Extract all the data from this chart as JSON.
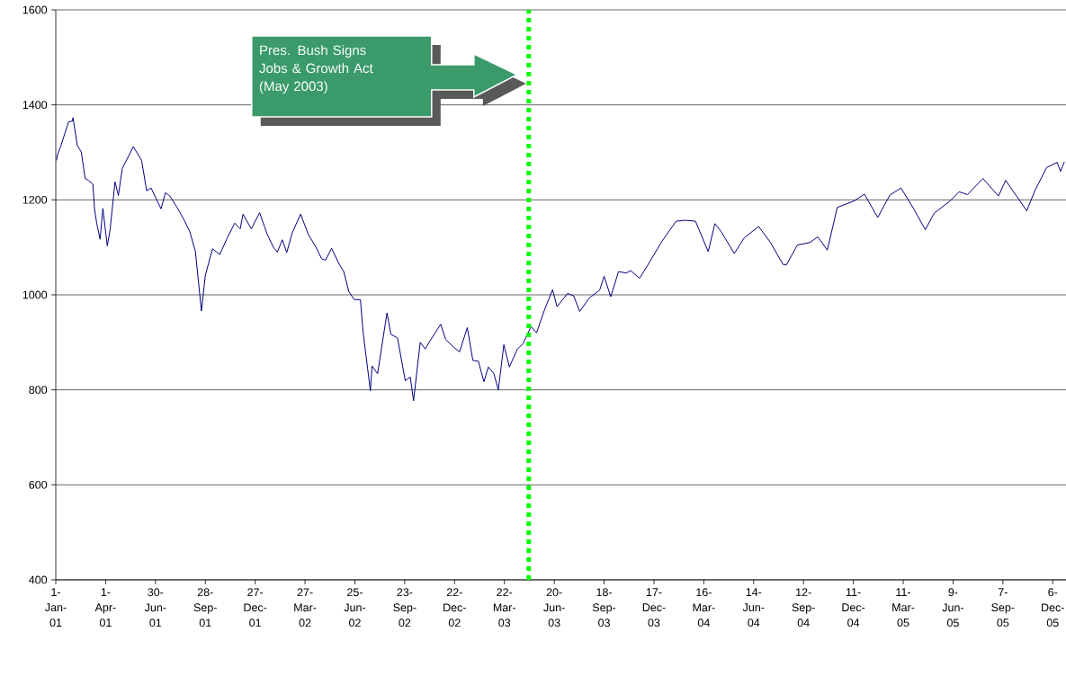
{
  "chart_data": {
    "type": "line",
    "x": [
      "2001-01-02",
      "2001-01-05",
      "2001-01-10",
      "2001-01-24",
      "2001-01-31",
      "2001-02-01",
      "2001-02-09",
      "2001-02-16",
      "2001-02-23",
      "2001-03-01",
      "2001-03-09",
      "2001-03-12",
      "2001-03-16",
      "2001-03-22",
      "2001-03-27",
      "2001-04-04",
      "2001-04-09",
      "2001-04-18",
      "2001-04-24",
      "2001-05-01",
      "2001-05-21",
      "2001-06-05",
      "2001-06-14",
      "2001-06-22",
      "2001-07-10",
      "2001-07-18",
      "2001-07-26",
      "2001-08-08",
      "2001-08-21",
      "2001-08-31",
      "2001-09-10",
      "2001-09-21",
      "2001-09-28",
      "2001-10-11",
      "2001-10-24",
      "2001-11-06",
      "2001-11-20",
      "2001-11-30",
      "2001-12-05",
      "2001-12-20",
      "2002-01-04",
      "2002-01-18",
      "2002-01-29",
      "2002-02-05",
      "2002-02-14",
      "2002-02-22",
      "2002-03-04",
      "2002-03-19",
      "2002-04-02",
      "2002-04-15",
      "2002-04-26",
      "2002-05-03",
      "2002-05-14",
      "2002-05-28",
      "2002-06-05",
      "2002-06-14",
      "2002-06-24",
      "2002-07-05",
      "2002-07-10",
      "2002-07-23",
      "2002-07-26",
      "2002-08-05",
      "2002-08-22",
      "2002-08-29",
      "2002-09-10",
      "2002-09-24",
      "2002-10-03",
      "2002-10-09",
      "2002-10-21",
      "2002-10-30",
      "2002-11-07",
      "2002-11-27",
      "2002-12-06",
      "2002-12-20",
      "2002-12-31",
      "2003-01-14",
      "2003-01-24",
      "2003-02-03",
      "2003-02-13",
      "2003-02-21",
      "2003-03-03",
      "2003-03-11",
      "2003-03-21",
      "2003-03-31",
      "2003-04-14",
      "2003-04-25",
      "2003-05-09",
      "2003-05-19",
      "2003-06-02",
      "2003-06-17",
      "2003-06-25",
      "2003-07-14",
      "2003-07-25",
      "2003-08-05",
      "2003-08-22",
      "2003-09-10",
      "2003-09-18",
      "2003-09-30",
      "2003-10-14",
      "2003-10-28",
      "2003-11-05",
      "2003-11-21",
      "2003-12-05",
      "2003-12-31",
      "2004-01-26",
      "2004-02-11",
      "2004-03-01",
      "2004-03-24",
      "2004-04-05",
      "2004-04-16",
      "2004-05-10",
      "2004-05-28",
      "2004-06-23",
      "2004-07-14",
      "2004-08-06",
      "2004-08-12",
      "2004-09-01",
      "2004-09-23",
      "2004-10-08",
      "2004-10-25",
      "2004-11-12",
      "2004-12-13",
      "2004-12-31",
      "2005-01-24",
      "2005-02-15",
      "2005-03-07",
      "2005-03-30",
      "2005-04-20",
      "2005-05-06",
      "2005-06-03",
      "2005-06-20",
      "2005-07-05",
      "2005-08-02",
      "2005-08-30",
      "2005-09-12",
      "2005-10-20",
      "2005-11-04",
      "2005-11-25",
      "2005-12-14",
      "2005-12-20",
      "2005-12-27"
    ],
    "values": [
      1283,
      1298,
      1313,
      1364,
      1366,
      1373,
      1314,
      1301,
      1245,
      1241,
      1233,
      1180,
      1150,
      1117,
      1182,
      1103,
      1137,
      1238,
      1209,
      1266,
      1312,
      1283,
      1219,
      1225,
      1181,
      1215,
      1208,
      1184,
      1157,
      1133,
      1092,
      966,
      1041,
      1097,
      1085,
      1118,
      1151,
      1139,
      1170,
      1139,
      1173,
      1127,
      1100,
      1090,
      1116,
      1089,
      1131,
      1170,
      1127,
      1102,
      1076,
      1073,
      1098,
      1064,
      1049,
      1007,
      990,
      990,
      920,
      798,
      850,
      834,
      962,
      917,
      909,
      819,
      827,
      777,
      900,
      886,
      902,
      938,
      906,
      890,
      880,
      931,
      862,
      860,
      817,
      848,
      834,
      800,
      895,
      848,
      885,
      898,
      933,
      920,
      967,
      1011,
      975,
      1003,
      998,
      965,
      993,
      1010,
      1039,
      996,
      1049,
      1046,
      1051,
      1035,
      1061,
      1112,
      1155,
      1157,
      1155,
      1091,
      1150,
      1134,
      1087,
      1120,
      1144,
      1111,
      1064,
      1063,
      1105,
      1110,
      1122,
      1094,
      1184,
      1198,
      1212,
      1163,
      1210,
      1225,
      1181,
      1137,
      1172,
      1197,
      1217,
      1211,
      1245,
      1208,
      1241,
      1177,
      1220,
      1268,
      1279,
      1260,
      1280
    ],
    "color": "#000080",
    "xlim": [
      "2001-01-01",
      "2005-12-30"
    ],
    "xticks": [
      {
        "value": "2001-01-01",
        "label": "1-Jan-01"
      },
      {
        "value": "2001-04-01",
        "label": "1-Apr-01"
      },
      {
        "value": "2001-06-30",
        "label": "30-Jun-01"
      },
      {
        "value": "2001-09-28",
        "label": "28-Sep-01"
      },
      {
        "value": "2001-12-27",
        "label": "27-Dec-01"
      },
      {
        "value": "2002-03-27",
        "label": "27-Mar-02"
      },
      {
        "value": "2002-06-25",
        "label": "25-Jun-02"
      },
      {
        "value": "2002-09-23",
        "label": "23-Sep-02"
      },
      {
        "value": "2002-12-22",
        "label": "22-Dec-02"
      },
      {
        "value": "2003-03-22",
        "label": "22-Mar-03"
      },
      {
        "value": "2003-06-20",
        "label": "20-Jun-03"
      },
      {
        "value": "2003-09-18",
        "label": "18-Sep-03"
      },
      {
        "value": "2003-12-17",
        "label": "17-Dec-03"
      },
      {
        "value": "2004-03-16",
        "label": "16-Mar-04"
      },
      {
        "value": "2004-06-14",
        "label": "14-Jun-04"
      },
      {
        "value": "2004-09-12",
        "label": "12-Sep-04"
      },
      {
        "value": "2004-12-11",
        "label": "11-Dec-04"
      },
      {
        "value": "2005-03-11",
        "label": "11-Mar-05"
      },
      {
        "value": "2005-06-09",
        "label": "9-Jun-05"
      },
      {
        "value": "2005-09-07",
        "label": "7-Sep-05"
      },
      {
        "value": "2005-12-06",
        "label": "6-Dec-05"
      }
    ],
    "ylim": [
      400,
      1600
    ],
    "yticks": [
      400,
      600,
      800,
      1000,
      1200,
      1400,
      1600
    ],
    "grid": "y",
    "marker": "none",
    "line_style": "solid",
    "ref_lines": [
      {
        "axis": "x",
        "value": "2003-05-05",
        "color": "#00ff00",
        "line_style": "dotted"
      }
    ],
    "annotations": [
      "Pres. Bush Signs Jobs & Growth Act (May 2003)"
    ]
  }
}
